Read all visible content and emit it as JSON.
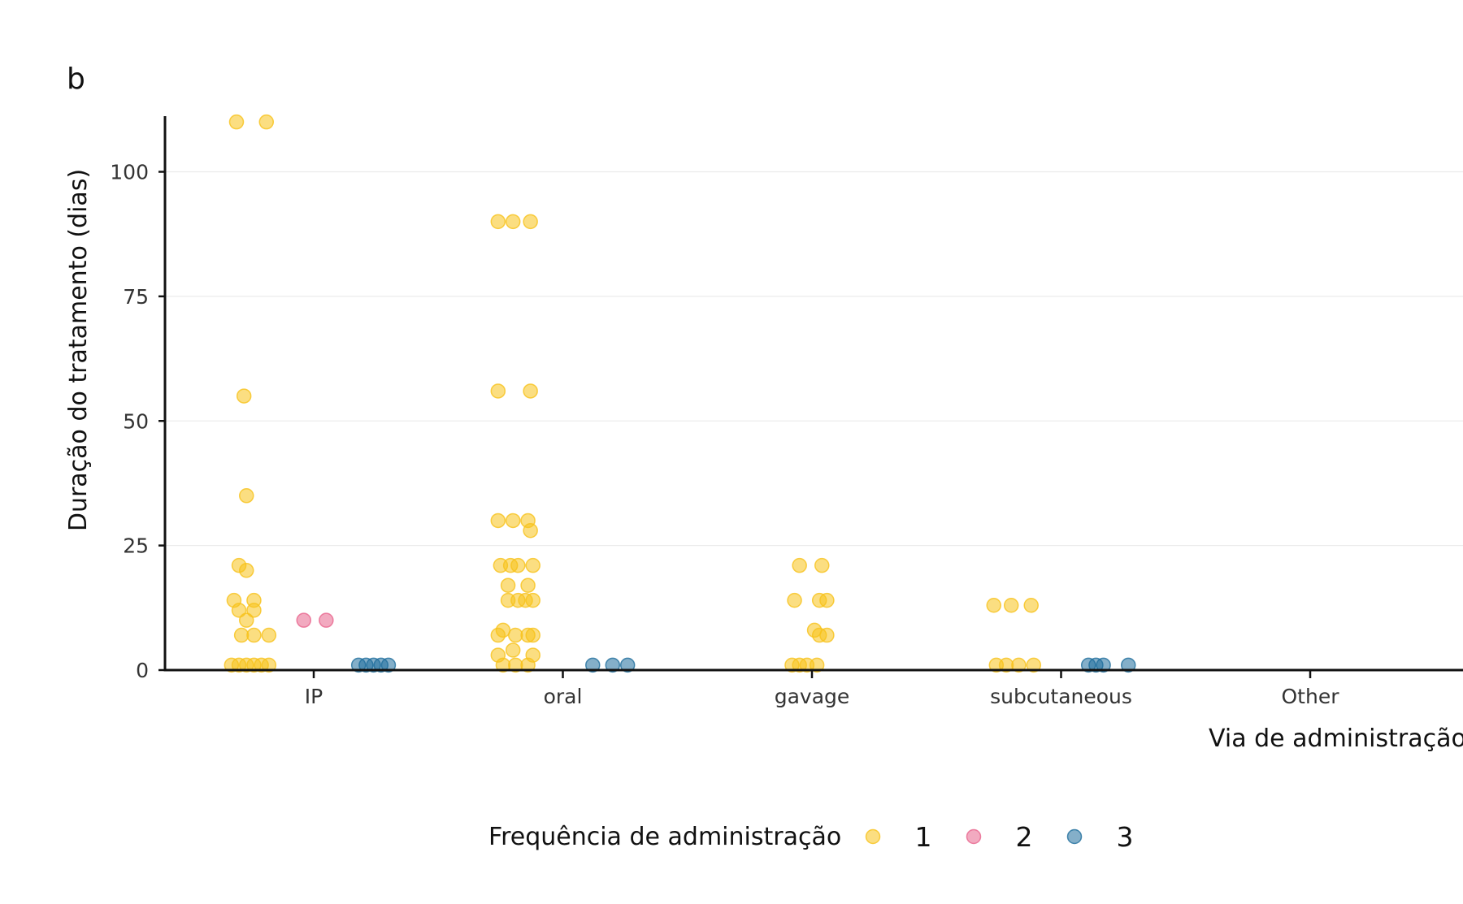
{
  "chart_data": {
    "type": "scatter",
    "panel_tag": "b",
    "xlabel": "Via de administração",
    "ylabel": "Duração do tratamento (dias)",
    "categories": [
      "IP",
      "oral",
      "gavage",
      "subcutaneous",
      "Other"
    ],
    "ylim": [
      0,
      110
    ],
    "yticks": [
      0,
      25,
      50,
      75,
      100
    ],
    "grid": "horizontal major lines",
    "legend": {
      "title": "Frequência de administração",
      "position": "bottom",
      "entries": [
        "1",
        "2",
        "3"
      ]
    },
    "colors": {
      "1": "#F7C21A",
      "2": "#E8658D",
      "3": "#1F6E9C"
    },
    "series": [
      {
        "name": "1",
        "points": [
          [
            "IP",
            -0.31,
            110
          ],
          [
            "IP",
            -0.19,
            110
          ],
          [
            "IP",
            -0.28,
            55
          ],
          [
            "IP",
            -0.27,
            35
          ],
          [
            "IP",
            -0.3,
            21
          ],
          [
            "IP",
            -0.27,
            20
          ],
          [
            "IP",
            -0.32,
            14
          ],
          [
            "IP",
            -0.24,
            14
          ],
          [
            "IP",
            -0.3,
            12
          ],
          [
            "IP",
            -0.24,
            12
          ],
          [
            "IP",
            -0.27,
            10
          ],
          [
            "IP",
            -0.29,
            7
          ],
          [
            "IP",
            -0.24,
            7
          ],
          [
            "IP",
            -0.18,
            7
          ],
          [
            "IP",
            -0.33,
            1
          ],
          [
            "IP",
            -0.3,
            1
          ],
          [
            "IP",
            -0.27,
            1
          ],
          [
            "IP",
            -0.24,
            1
          ],
          [
            "IP",
            -0.21,
            1
          ],
          [
            "IP",
            -0.18,
            1
          ],
          [
            "oral",
            -0.26,
            90
          ],
          [
            "oral",
            -0.2,
            90
          ],
          [
            "oral",
            -0.13,
            90
          ],
          [
            "oral",
            -0.26,
            56
          ],
          [
            "oral",
            -0.13,
            56
          ],
          [
            "oral",
            -0.26,
            30
          ],
          [
            "oral",
            -0.2,
            30
          ],
          [
            "oral",
            -0.14,
            30
          ],
          [
            "oral",
            -0.13,
            28
          ],
          [
            "oral",
            -0.25,
            21
          ],
          [
            "oral",
            -0.21,
            21
          ],
          [
            "oral",
            -0.18,
            21
          ],
          [
            "oral",
            -0.12,
            21
          ],
          [
            "oral",
            -0.22,
            17
          ],
          [
            "oral",
            -0.14,
            17
          ],
          [
            "oral",
            -0.22,
            14
          ],
          [
            "oral",
            -0.18,
            14
          ],
          [
            "oral",
            -0.15,
            14
          ],
          [
            "oral",
            -0.12,
            14
          ],
          [
            "oral",
            -0.24,
            8
          ],
          [
            "oral",
            -0.26,
            7
          ],
          [
            "oral",
            -0.19,
            7
          ],
          [
            "oral",
            -0.14,
            7
          ],
          [
            "oral",
            -0.12,
            7
          ],
          [
            "oral",
            -0.2,
            4
          ],
          [
            "oral",
            -0.26,
            3
          ],
          [
            "oral",
            -0.12,
            3
          ],
          [
            "oral",
            -0.24,
            1
          ],
          [
            "oral",
            -0.19,
            1
          ],
          [
            "oral",
            -0.14,
            1
          ],
          [
            "gavage",
            -0.05,
            21
          ],
          [
            "gavage",
            0.04,
            21
          ],
          [
            "gavage",
            -0.07,
            14
          ],
          [
            "gavage",
            0.03,
            14
          ],
          [
            "gavage",
            0.06,
            14
          ],
          [
            "gavage",
            0.01,
            8
          ],
          [
            "gavage",
            0.03,
            7
          ],
          [
            "gavage",
            0.06,
            7
          ],
          [
            "gavage",
            -0.08,
            1
          ],
          [
            "gavage",
            -0.05,
            1
          ],
          [
            "gavage",
            -0.02,
            1
          ],
          [
            "gavage",
            0.02,
            1
          ],
          [
            "subcutaneous",
            -0.27,
            13
          ],
          [
            "subcutaneous",
            -0.2,
            13
          ],
          [
            "subcutaneous",
            -0.12,
            13
          ],
          [
            "subcutaneous",
            -0.26,
            1
          ],
          [
            "subcutaneous",
            -0.22,
            1
          ],
          [
            "subcutaneous",
            -0.17,
            1
          ],
          [
            "subcutaneous",
            -0.11,
            1
          ]
        ]
      },
      {
        "name": "2",
        "points": [
          [
            "IP",
            -0.04,
            10
          ],
          [
            "IP",
            0.05,
            10
          ]
        ]
      },
      {
        "name": "3",
        "points": [
          [
            "IP",
            0.18,
            1
          ],
          [
            "IP",
            0.21,
            1
          ],
          [
            "IP",
            0.24,
            1
          ],
          [
            "IP",
            0.27,
            1
          ],
          [
            "IP",
            0.3,
            1
          ],
          [
            "oral",
            0.12,
            1
          ],
          [
            "oral",
            0.2,
            1
          ],
          [
            "oral",
            0.26,
            1
          ],
          [
            "subcutaneous",
            0.11,
            1
          ],
          [
            "subcutaneous",
            0.14,
            1
          ],
          [
            "subcutaneous",
            0.17,
            1
          ],
          [
            "subcutaneous",
            0.27,
            1
          ]
        ]
      }
    ]
  }
}
